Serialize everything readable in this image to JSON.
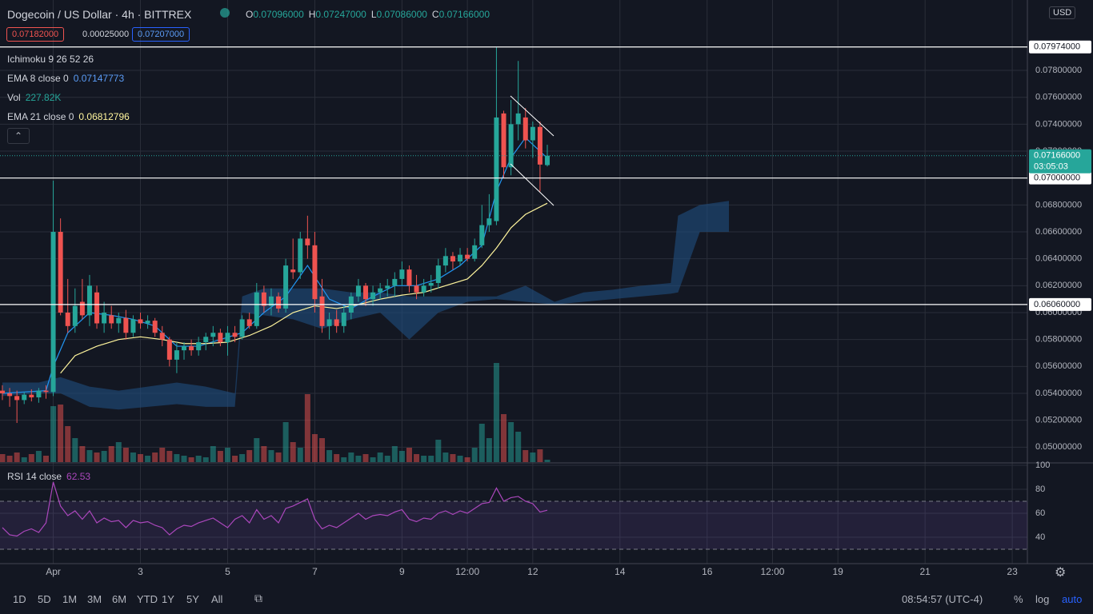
{
  "header": {
    "title": "Dogecoin / US Dollar · 4h · BITTREX",
    "ohlc": [
      {
        "key": "O",
        "value": "0.07096000"
      },
      {
        "key": "H",
        "value": "0.07247000"
      },
      {
        "key": "L",
        "value": "0.07086000"
      },
      {
        "key": "C",
        "value": "0.07166000"
      }
    ]
  },
  "order": {
    "sell": "0.07182000",
    "spread": "0.00025000",
    "buy": "0.07207000"
  },
  "legend": {
    "ichimoku": "Ichimoku 9 26 52 26",
    "ema8": {
      "label": "EMA 8 close 0",
      "value": "0.07147773"
    },
    "vol": {
      "label": "Vol",
      "value": "227.82K"
    },
    "ema21": {
      "label": "EMA 21 close 0",
      "value": "0.06812796"
    },
    "rsi": {
      "label": "RSI 14 close",
      "value": "62.53"
    }
  },
  "currency": "USD",
  "chart_data": [
    {
      "type": "candlestick",
      "color_up": "#26a69a",
      "color_down": "#ef5350",
      "open": [
        0.0542,
        0.054,
        0.0538,
        0.0535,
        0.0539,
        0.0537,
        0.0542,
        0.0541,
        0.066,
        0.06,
        0.059,
        0.0608,
        0.0598,
        0.0615,
        0.0592,
        0.0598,
        0.0592,
        0.0596,
        0.0585,
        0.0595,
        0.0592,
        0.0594,
        0.0585,
        0.058,
        0.0565,
        0.0572,
        0.0575,
        0.0572,
        0.0578,
        0.0582,
        0.0585,
        0.0578,
        0.0585,
        0.0582,
        0.0595,
        0.059,
        0.0615,
        0.0605,
        0.0612,
        0.0603,
        0.0632,
        0.063,
        0.0655,
        0.065,
        0.0612,
        0.059,
        0.0595,
        0.059,
        0.06,
        0.0612,
        0.062,
        0.061,
        0.0615,
        0.0618,
        0.062,
        0.0625,
        0.0632,
        0.062,
        0.0615,
        0.062,
        0.0622,
        0.0635,
        0.0642,
        0.0638,
        0.0643,
        0.064,
        0.065,
        0.0665,
        0.0668,
        0.0748,
        0.0708,
        0.074,
        0.0745,
        0.0728,
        0.0738,
        0.07096
      ],
      "high": [
        0.0546,
        0.0544,
        0.0542,
        0.0541,
        0.0543,
        0.0544,
        0.0546,
        0.0698,
        0.067,
        0.0625,
        0.0618,
        0.0625,
        0.0628,
        0.062,
        0.0608,
        0.0605,
        0.06,
        0.0602,
        0.0598,
        0.06,
        0.0598,
        0.0596,
        0.059,
        0.0582,
        0.0578,
        0.0578,
        0.058,
        0.0582,
        0.0585,
        0.059,
        0.0588,
        0.059,
        0.059,
        0.0598,
        0.06,
        0.0622,
        0.062,
        0.0618,
        0.0615,
        0.064,
        0.0655,
        0.066,
        0.0672,
        0.066,
        0.0625,
        0.06,
        0.0602,
        0.0605,
        0.0615,
        0.0625,
        0.0622,
        0.062,
        0.0622,
        0.0625,
        0.063,
        0.0638,
        0.0635,
        0.0628,
        0.0625,
        0.0628,
        0.064,
        0.0648,
        0.0645,
        0.0648,
        0.0648,
        0.0655,
        0.068,
        0.0688,
        0.0797,
        0.075,
        0.0758,
        0.0787,
        0.0752,
        0.0742,
        0.0742,
        0.07247
      ],
      "low": [
        0.0535,
        0.053,
        0.0518,
        0.0532,
        0.0534,
        0.0533,
        0.0536,
        0.0538,
        0.0598,
        0.0585,
        0.0585,
        0.0595,
        0.059,
        0.0588,
        0.0585,
        0.0588,
        0.0585,
        0.058,
        0.0582,
        0.0588,
        0.0588,
        0.0582,
        0.0575,
        0.056,
        0.0555,
        0.0565,
        0.0568,
        0.0568,
        0.0572,
        0.0575,
        0.0575,
        0.0568,
        0.0578,
        0.058,
        0.0588,
        0.0588,
        0.06,
        0.0598,
        0.06,
        0.06,
        0.0625,
        0.0625,
        0.064,
        0.06,
        0.0585,
        0.058,
        0.0585,
        0.0585,
        0.0595,
        0.0608,
        0.0605,
        0.0605,
        0.061,
        0.0612,
        0.0612,
        0.062,
        0.0615,
        0.061,
        0.0612,
        0.0615,
        0.0618,
        0.063,
        0.0632,
        0.0635,
        0.0638,
        0.0638,
        0.0648,
        0.066,
        0.0665,
        0.07,
        0.0702,
        0.0728,
        0.0722,
        0.0715,
        0.069,
        0.07086
      ],
      "close": [
        0.054,
        0.0538,
        0.0535,
        0.0539,
        0.0537,
        0.0542,
        0.0541,
        0.066,
        0.06,
        0.059,
        0.0605,
        0.0598,
        0.062,
        0.0592,
        0.06,
        0.0592,
        0.0596,
        0.0585,
        0.0595,
        0.0592,
        0.0594,
        0.0585,
        0.058,
        0.0565,
        0.0572,
        0.0575,
        0.0572,
        0.0578,
        0.0582,
        0.0585,
        0.0578,
        0.0585,
        0.0582,
        0.0595,
        0.059,
        0.0615,
        0.0605,
        0.0612,
        0.0603,
        0.0635,
        0.063,
        0.0655,
        0.065,
        0.061,
        0.059,
        0.0595,
        0.059,
        0.06,
        0.0612,
        0.062,
        0.061,
        0.0615,
        0.0618,
        0.062,
        0.0625,
        0.0632,
        0.062,
        0.0615,
        0.062,
        0.0622,
        0.0635,
        0.0642,
        0.0638,
        0.0643,
        0.064,
        0.065,
        0.0665,
        0.067,
        0.0745,
        0.0708,
        0.074,
        0.0748,
        0.0728,
        0.0738,
        0.071,
        0.07166
      ],
      "xlim": [
        -0.33,
        141.08
      ],
      "ylim": [
        0.04889,
        0.08323
      ],
      "yticks": [
        {
          "value": 0.05,
          "label": "0.05000000"
        },
        {
          "value": 0.052,
          "label": "0.05200000"
        },
        {
          "value": 0.054,
          "label": "0.05400000"
        },
        {
          "value": 0.056,
          "label": "0.05600000"
        },
        {
          "value": 0.058,
          "label": "0.05800000"
        },
        {
          "value": 0.06,
          "label": "0.06000000"
        },
        {
          "value": 0.062,
          "label": "0.06200000"
        },
        {
          "value": 0.064,
          "label": "0.06400000"
        },
        {
          "value": 0.066,
          "label": "0.06600000"
        },
        {
          "value": 0.068,
          "label": "0.06800000"
        },
        {
          "value": 0.07,
          "label": "0.07000000"
        },
        {
          "value": 0.072,
          "label": "0.07200000"
        },
        {
          "value": 0.074,
          "label": "0.07400000"
        },
        {
          "value": 0.076,
          "label": "0.07600000"
        },
        {
          "value": 0.078,
          "label": "0.07800000"
        }
      ],
      "xticks": [
        {
          "value": 7,
          "label": "Apr"
        },
        {
          "value": 19,
          "label": "3"
        },
        {
          "value": 31,
          "label": "5"
        },
        {
          "value": 43,
          "label": "7"
        },
        {
          "value": 55,
          "label": "9"
        },
        {
          "value": 64,
          "label": "12:00"
        },
        {
          "value": 73,
          "label": "12"
        },
        {
          "value": 85,
          "label": "14"
        },
        {
          "value": 97,
          "label": "16"
        },
        {
          "value": 106,
          "label": "12:00"
        },
        {
          "value": 115,
          "label": "19"
        },
        {
          "value": 127,
          "label": "21"
        },
        {
          "value": 139,
          "label": "23"
        }
      ],
      "grid": true,
      "hlines": [
        {
          "value": 0.07974,
          "label": "0.07974000"
        },
        {
          "value": 0.07,
          "label": "0.07000000"
        },
        {
          "value": 0.0606,
          "label": "0.06060000"
        }
      ],
      "last_price": {
        "value": 0.07166,
        "label": "0.07166000",
        "countdown": "03:05:03"
      },
      "lines": [
        {
          "name": "EMA 8",
          "color": "#2196f3",
          "x": [
            0,
            3,
            6,
            7,
            9,
            12,
            15,
            18,
            21,
            24,
            27,
            30,
            33,
            36,
            39,
            42,
            45,
            48,
            51,
            54,
            57,
            60,
            63,
            66,
            68,
            70,
            72,
            75
          ],
          "values": [
            0.054,
            0.0541,
            0.0542,
            0.056,
            0.0585,
            0.06,
            0.0598,
            0.0595,
            0.059,
            0.0575,
            0.0575,
            0.058,
            0.0585,
            0.06,
            0.0612,
            0.0635,
            0.061,
            0.0603,
            0.0612,
            0.062,
            0.062,
            0.0625,
            0.0635,
            0.065,
            0.069,
            0.0715,
            0.073,
            0.07148
          ]
        },
        {
          "name": "EMA 21",
          "color": "#fff59d",
          "x": [
            8,
            10,
            13,
            16,
            19,
            22,
            25,
            28,
            31,
            34,
            37,
            40,
            43,
            46,
            49,
            52,
            55,
            58,
            61,
            64,
            66,
            68,
            70,
            72,
            75
          ],
          "values": [
            0.0555,
            0.0568,
            0.0575,
            0.058,
            0.0582,
            0.058,
            0.0577,
            0.0577,
            0.0578,
            0.0583,
            0.059,
            0.06,
            0.0605,
            0.0603,
            0.0606,
            0.061,
            0.0613,
            0.0615,
            0.062,
            0.0625,
            0.0635,
            0.0648,
            0.0663,
            0.0673,
            0.06813
          ]
        }
      ],
      "cloud": {
        "color": "#1f4e80",
        "x": [
          0,
          5,
          8,
          12,
          16,
          20,
          24,
          28,
          32,
          33,
          36,
          40,
          44,
          48,
          52,
          56,
          60,
          64,
          68,
          72,
          76,
          80,
          84,
          88,
          92,
          93,
          96,
          100
        ],
        "upper": [
          0.0548,
          0.0548,
          0.0552,
          0.0545,
          0.0542,
          0.0545,
          0.0548,
          0.0545,
          0.054,
          0.0612,
          0.0618,
          0.0618,
          0.0618,
          0.0615,
          0.0615,
          0.0612,
          0.0612,
          0.0612,
          0.0612,
          0.062,
          0.0608,
          0.0615,
          0.0617,
          0.062,
          0.0622,
          0.0672,
          0.068,
          0.0683
        ],
        "lower": [
          0.0538,
          0.054,
          0.054,
          0.053,
          0.0528,
          0.053,
          0.0532,
          0.053,
          0.053,
          0.06,
          0.0598,
          0.0595,
          0.0588,
          0.0595,
          0.06,
          0.058,
          0.06,
          0.0608,
          0.061,
          0.0608,
          0.0606,
          0.0608,
          0.061,
          0.0612,
          0.0614,
          0.0615,
          0.066,
          0.066
        ]
      }
    },
    {
      "type": "bar",
      "values": [
        760000,
        608000,
        912000,
        456000,
        760000,
        1064000,
        608000,
        5320000,
        5472000,
        3420000,
        2280000,
        1520000,
        1140000,
        912000,
        1064000,
        1520000,
        1900000,
        1368000,
        912000,
        760000,
        608000,
        912000,
        1368000,
        1064000,
        760000,
        608000,
        456000,
        608000,
        456000,
        1520000,
        1064000,
        1368000,
        608000,
        760000,
        1140000,
        2280000,
        1520000,
        1140000,
        912000,
        3800000,
        1900000,
        1368000,
        6460000,
        2660000,
        2280000,
        1140000,
        760000,
        456000,
        912000,
        608000,
        760000,
        456000,
        912000,
        608000,
        1520000,
        1064000,
        1368000,
        760000,
        608000,
        608000,
        2128000,
        912000,
        760000,
        608000,
        456000,
        1368000,
        3648000,
        2280000,
        9424000,
        4560000,
        3800000,
        2888000,
        1140000,
        912000,
        1216000,
        227820
      ]
    },
    {
      "type": "line",
      "color": "#ab47bc",
      "values": [
        48,
        42,
        41,
        45,
        47,
        44,
        52,
        86,
        66,
        58,
        62,
        55,
        62,
        52,
        56,
        53,
        54,
        48,
        54,
        52,
        53,
        50,
        48,
        42,
        47,
        50,
        49,
        52,
        54,
        56,
        52,
        48,
        55,
        58,
        52,
        63,
        55,
        58,
        52,
        64,
        66,
        69,
        72,
        55,
        47,
        50,
        48,
        52,
        56,
        60,
        55,
        58,
        59,
        58,
        61,
        63,
        55,
        53,
        56,
        55,
        60,
        62,
        59,
        62,
        60,
        64,
        68,
        69,
        81,
        70,
        73,
        74,
        70,
        68,
        61,
        62.53
      ],
      "ylim": [
        18,
        101.3
      ],
      "yticks": [
        100,
        80,
        60,
        40
      ],
      "bands": [
        70,
        30
      ]
    }
  ],
  "toolbar": {
    "ranges": [
      "1D",
      "5D",
      "1M",
      "3M",
      "6M",
      "YTD",
      "1Y",
      "5Y",
      "All"
    ],
    "time": "08:54:57 (UTC-4)",
    "options": [
      "%",
      "log",
      "auto"
    ]
  }
}
